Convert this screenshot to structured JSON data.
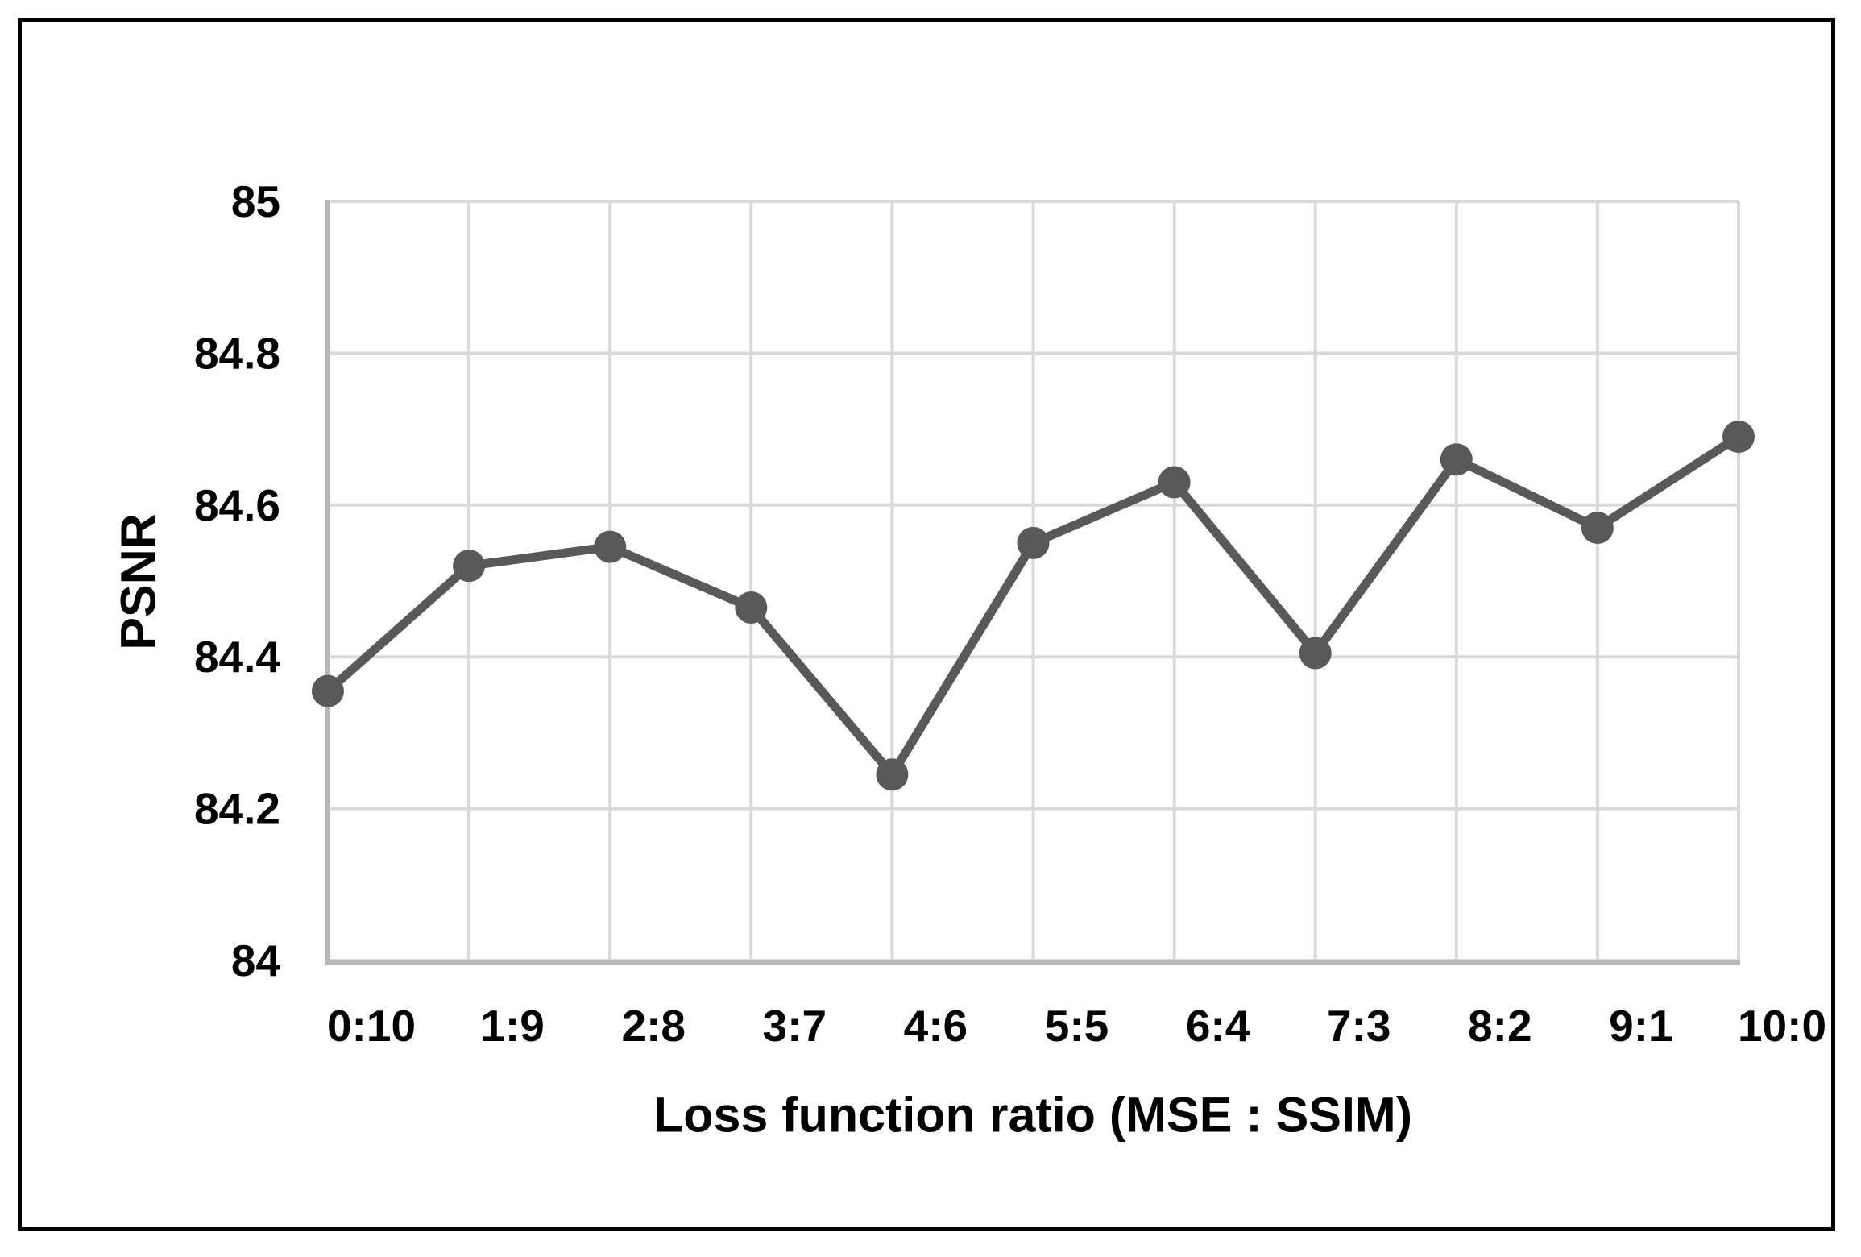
{
  "chart_data": {
    "type": "line",
    "title": "",
    "categories": [
      "0:10",
      "1:9",
      "2:8",
      "3:7",
      "4:6",
      "5:5",
      "6:4",
      "7:3",
      "8:2",
      "9:1",
      "10:0"
    ],
    "values": [
      84.355,
      84.52,
      84.545,
      84.465,
      84.245,
      84.55,
      84.63,
      84.405,
      84.66,
      84.57,
      84.69
    ],
    "xlabel": "Loss function ratio (MSE : SSIM)",
    "ylabel": "PSNR",
    "ylim": [
      84,
      85
    ],
    "yticks": [
      84,
      84.2,
      84.4,
      84.6,
      84.8,
      85
    ],
    "ytick_labels": [
      "84",
      "84.2",
      "84.4",
      "84.6",
      "84.8",
      "85"
    ],
    "grid": true,
    "legend": false,
    "line_color": "#595959",
    "marker_color": "#595959",
    "marker_shape": "circle",
    "gridline_color": "#d9d9d9",
    "axis_line_color": "#b7b7b7",
    "text_color": "#000000",
    "background_color": "#ffffff",
    "frame_color": "#000000"
  }
}
